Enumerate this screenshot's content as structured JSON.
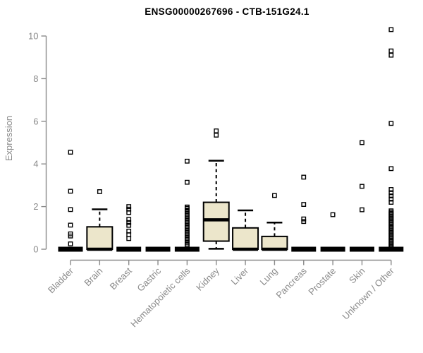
{
  "chart_data": {
    "type": "boxplot",
    "title": "ENSG00000267696 - CTB-151G24.1",
    "ylabel": "Expression",
    "xlabel": "",
    "ylim": [
      0,
      10
    ],
    "yticks": [
      0,
      2,
      4,
      6,
      8,
      10
    ],
    "grid": false,
    "legend": "none",
    "colors": {
      "box_fill": "#ece6cb",
      "box_border": "#000000",
      "median": "#000000",
      "outlier": "#000000",
      "axis": "#8a8a8a",
      "title": "#000000",
      "background": "#ffffff"
    },
    "categories": [
      "Bladder",
      "Brain",
      "Breast",
      "Gastric",
      "Hematopoietic cells",
      "Kidney",
      "Liver",
      "Lung",
      "Pancreas",
      "Prostate",
      "Skin",
      "Unknown / Other"
    ],
    "series": [
      {
        "label": "Bladder",
        "lo": 0,
        "q1": 0,
        "med": 0,
        "q3": 0,
        "hi": 0,
        "outliers": [
          4.55,
          2.72,
          1.86,
          1.13,
          0.72,
          0.62,
          0.25
        ]
      },
      {
        "label": "Brain",
        "lo": 0,
        "q1": 0,
        "med": 0,
        "q3": 1.05,
        "hi": 1.87,
        "outliers": [
          2.7
        ]
      },
      {
        "label": "Breast",
        "lo": 0,
        "q1": 0,
        "med": 0,
        "q3": 0,
        "hi": 0,
        "outliers": [
          2.0,
          1.88,
          1.72,
          1.4,
          1.25,
          1.12,
          0.85,
          0.68,
          0.5
        ]
      },
      {
        "label": "Gastric",
        "lo": 0,
        "q1": 0,
        "med": 0,
        "q3": 0,
        "hi": 0,
        "outliers": []
      },
      {
        "label": "Hematopoietic cells",
        "lo": 0,
        "q1": 0,
        "med": 0,
        "q3": 0,
        "hi": 0,
        "outliers": [
          4.13,
          3.14,
          1.98,
          1.92,
          1.84,
          1.76,
          1.68,
          1.6,
          1.52,
          1.44,
          1.36,
          1.28,
          1.2,
          1.12,
          1.04,
          0.96,
          0.88,
          0.8,
          0.72,
          0.64,
          0.56,
          0.48,
          0.4,
          0.32,
          0.24,
          0.16
        ]
      },
      {
        "label": "Kidney",
        "lo": 0.02,
        "q1": 0.38,
        "med": 1.38,
        "q3": 2.2,
        "hi": 4.15,
        "outliers": [
          5.55,
          5.35
        ]
      },
      {
        "label": "Liver",
        "lo": 0,
        "q1": 0,
        "med": 0,
        "q3": 1.0,
        "hi": 1.82,
        "outliers": []
      },
      {
        "label": "Lung",
        "lo": 0,
        "q1": 0,
        "med": 0,
        "q3": 0.6,
        "hi": 1.25,
        "outliers": [
          2.52
        ]
      },
      {
        "label": "Pancreas",
        "lo": 0,
        "q1": 0,
        "med": 0,
        "q3": 0,
        "hi": 0,
        "outliers": [
          3.38,
          2.1,
          1.42,
          1.3
        ]
      },
      {
        "label": "Prostate",
        "lo": 0,
        "q1": 0,
        "med": 0,
        "q3": 0,
        "hi": 0,
        "outliers": [
          1.62
        ]
      },
      {
        "label": "Skin",
        "lo": 0,
        "q1": 0,
        "med": 0,
        "q3": 0,
        "hi": 0,
        "outliers": [
          5.0,
          2.95,
          1.85
        ]
      },
      {
        "label": "Unknown / Other",
        "lo": 0,
        "q1": 0,
        "med": 0,
        "q3": 0,
        "hi": 0,
        "outliers": [
          10.3,
          9.3,
          9.1,
          5.9,
          3.78,
          2.8,
          2.65,
          2.5,
          2.35,
          2.2,
          1.8,
          1.74,
          1.68,
          1.62,
          1.56,
          1.5,
          1.44,
          1.38,
          1.32,
          1.26,
          1.2,
          1.14,
          1.08,
          1.02,
          0.96,
          0.9,
          0.84,
          0.78,
          0.72,
          0.66,
          0.6,
          0.54,
          0.48,
          0.42,
          0.36,
          0.3,
          0.24,
          0.18,
          0.12,
          0.06
        ]
      }
    ]
  }
}
